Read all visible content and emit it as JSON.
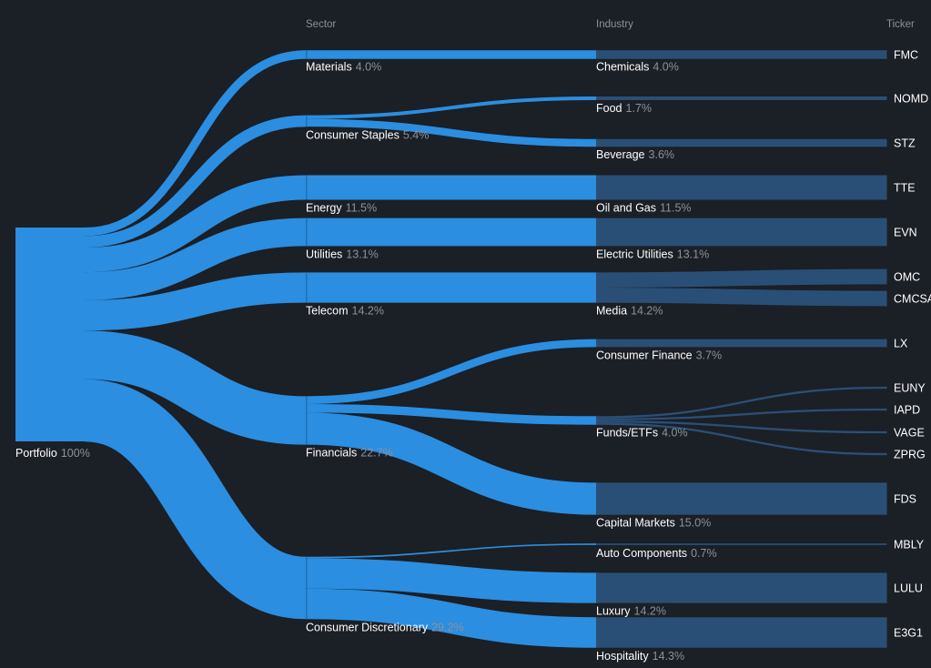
{
  "chart_data": {
    "type": "sankey",
    "column_headers": [
      "Sector",
      "Industry",
      "Ticker"
    ],
    "colors": {
      "background": "#1b1f26",
      "flow": "#2b8ee0",
      "sector_node": "#2b8ee0",
      "industry_node": "#2a4f76",
      "ticker_node": "#2a4f76",
      "label": "#ffffff",
      "percent": "#8b929c",
      "header": "#8b929c"
    },
    "root": {
      "name": "Portfolio",
      "percent": "100%",
      "value": 100
    },
    "sectors": [
      {
        "name": "Materials",
        "percent": "4.0%",
        "value": 4.0
      },
      {
        "name": "Consumer Staples",
        "percent": "5.4%",
        "value": 5.4
      },
      {
        "name": "Energy",
        "percent": "11.5%",
        "value": 11.5
      },
      {
        "name": "Utilities",
        "percent": "13.1%",
        "value": 13.1
      },
      {
        "name": "Telecom",
        "percent": "14.2%",
        "value": 14.2
      },
      {
        "name": "Financials",
        "percent": "22.7%",
        "value": 22.7
      },
      {
        "name": "Consumer Discretionary",
        "percent": "29.2%",
        "value": 29.2
      }
    ],
    "industries": [
      {
        "name": "Chemicals",
        "percent": "4.0%",
        "value": 4.0,
        "sector": "Materials"
      },
      {
        "name": "Food",
        "percent": "1.7%",
        "value": 1.7,
        "sector": "Consumer Staples"
      },
      {
        "name": "Beverage",
        "percent": "3.6%",
        "value": 3.6,
        "sector": "Consumer Staples"
      },
      {
        "name": "Oil and Gas",
        "percent": "11.5%",
        "value": 11.5,
        "sector": "Energy"
      },
      {
        "name": "Electric Utilities",
        "percent": "13.1%",
        "value": 13.1,
        "sector": "Utilities"
      },
      {
        "name": "Media",
        "percent": "14.2%",
        "value": 14.2,
        "sector": "Telecom"
      },
      {
        "name": "Consumer Finance",
        "percent": "3.7%",
        "value": 3.7,
        "sector": "Financials"
      },
      {
        "name": "Funds/ETFs",
        "percent": "4.0%",
        "value": 4.0,
        "sector": "Financials"
      },
      {
        "name": "Capital Markets",
        "percent": "15.0%",
        "value": 15.0,
        "sector": "Financials"
      },
      {
        "name": "Auto Components",
        "percent": "0.7%",
        "value": 0.7,
        "sector": "Consumer Discretionary"
      },
      {
        "name": "Luxury",
        "percent": "14.2%",
        "value": 14.2,
        "sector": "Consumer Discretionary"
      },
      {
        "name": "Hospitality",
        "percent": "14.3%",
        "value": 14.3,
        "sector": "Consumer Discretionary"
      }
    ],
    "tickers": [
      {
        "name": "FMC",
        "value": 4.0,
        "industry": "Chemicals"
      },
      {
        "name": "NOMD",
        "value": 1.7,
        "industry": "Food"
      },
      {
        "name": "STZ",
        "value": 3.6,
        "industry": "Beverage"
      },
      {
        "name": "TTE",
        "value": 11.5,
        "industry": "Oil and Gas"
      },
      {
        "name": "EVN",
        "value": 13.1,
        "industry": "Electric Utilities"
      },
      {
        "name": "OMC",
        "value": 7.1,
        "industry": "Media"
      },
      {
        "name": "CMCSA",
        "value": 7.1,
        "industry": "Media"
      },
      {
        "name": "LX",
        "value": 3.7,
        "industry": "Consumer Finance"
      },
      {
        "name": "EUNY",
        "value": 1.0,
        "industry": "Funds/ETFs"
      },
      {
        "name": "IAPD",
        "value": 1.0,
        "industry": "Funds/ETFs"
      },
      {
        "name": "VAGE",
        "value": 1.0,
        "industry": "Funds/ETFs"
      },
      {
        "name": "ZPRG",
        "value": 1.0,
        "industry": "Funds/ETFs"
      },
      {
        "name": "FDS",
        "value": 15.0,
        "industry": "Capital Markets"
      },
      {
        "name": "MBLY",
        "value": 0.7,
        "industry": "Auto Components"
      },
      {
        "name": "LULU",
        "value": 14.2,
        "industry": "Luxury"
      },
      {
        "name": "E3G1",
        "value": 14.3,
        "industry": "Hospitality"
      }
    ]
  }
}
